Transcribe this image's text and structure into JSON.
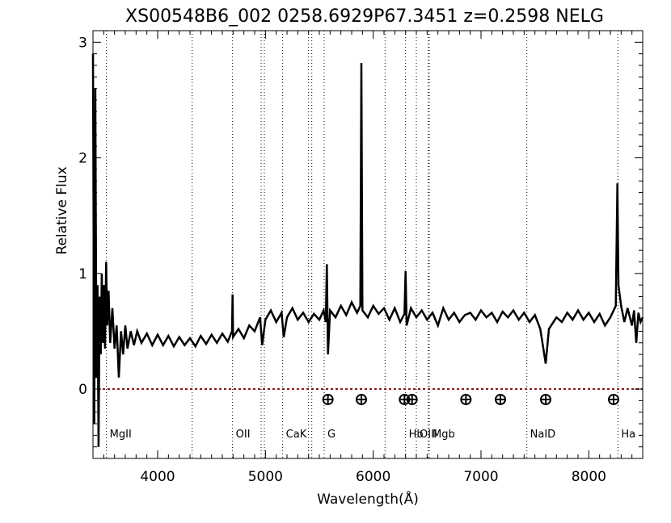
{
  "chart_data": {
    "type": "line",
    "title": "XS00548B6_002  0258.6929P67.3451  z=0.2598   NELG",
    "xlabel": "Wavelength(Å)",
    "ylabel": "Relative Flux",
    "xlim": [
      3400,
      8500
    ],
    "ylim": [
      -0.6,
      3.1
    ],
    "xticks": [
      4000,
      5000,
      6000,
      7000,
      8000
    ],
    "yticks": [
      0,
      1,
      2,
      3
    ],
    "grid": false,
    "zero_line": {
      "y": 0,
      "style": "dotted",
      "color": "#8b1a1a"
    },
    "spectral_lines": [
      {
        "label": "MgII",
        "x": 3525
      },
      {
        "label": "",
        "x": 4320
      },
      {
        "label": "OII",
        "x": 4695
      },
      {
        "label": "",
        "x": 4960
      },
      {
        "label": "",
        "x": 4990
      },
      {
        "label": "CaK",
        "x": 5160
      },
      {
        "label": "",
        "x": 5400
      },
      {
        "label": "",
        "x": 5430
      },
      {
        "label": "G",
        "x": 5545
      },
      {
        "label": "",
        "x": 6110
      },
      {
        "label": "Hb",
        "x": 6300
      },
      {
        "label": "OIII",
        "x": 6400
      },
      {
        "label": "",
        "x": 6510
      },
      {
        "label": "Mgb",
        "x": 6520
      },
      {
        "label": "NaID",
        "x": 7425
      },
      {
        "label": "Ha",
        "x": 8270
      }
    ],
    "telluric_markers": [
      5580,
      5890,
      6290,
      6360,
      6860,
      7180,
      7600,
      8230
    ],
    "telluric_marker_y": -0.09,
    "series": [
      {
        "values": [
          [
            3400,
            2.9
          ],
          [
            3412,
            -0.3
          ],
          [
            3422,
            2.6
          ],
          [
            3432,
            0.1
          ],
          [
            3442,
            0.9
          ],
          [
            3452,
            -0.5
          ],
          [
            3462,
            0.8
          ],
          [
            3472,
            0.3
          ],
          [
            3482,
            1.0
          ],
          [
            3492,
            0.4
          ],
          [
            3502,
            0.9
          ],
          [
            3512,
            0.35
          ],
          [
            3522,
            1.1
          ],
          [
            3532,
            0.55
          ],
          [
            3545,
            0.85
          ],
          [
            3560,
            0.4
          ],
          [
            3580,
            0.7
          ],
          [
            3600,
            0.35
          ],
          [
            3620,
            0.55
          ],
          [
            3640,
            0.1
          ],
          [
            3660,
            0.5
          ],
          [
            3680,
            0.3
          ],
          [
            3700,
            0.55
          ],
          [
            3720,
            0.35
          ],
          [
            3750,
            0.5
          ],
          [
            3780,
            0.38
          ],
          [
            3810,
            0.5
          ],
          [
            3850,
            0.4
          ],
          [
            3900,
            0.48
          ],
          [
            3950,
            0.38
          ],
          [
            4000,
            0.47
          ],
          [
            4050,
            0.38
          ],
          [
            4100,
            0.46
          ],
          [
            4150,
            0.37
          ],
          [
            4200,
            0.45
          ],
          [
            4250,
            0.38
          ],
          [
            4300,
            0.44
          ],
          [
            4350,
            0.37
          ],
          [
            4400,
            0.46
          ],
          [
            4450,
            0.39
          ],
          [
            4500,
            0.47
          ],
          [
            4550,
            0.4
          ],
          [
            4600,
            0.48
          ],
          [
            4650,
            0.41
          ],
          [
            4690,
            0.5
          ],
          [
            4695,
            0.82
          ],
          [
            4700,
            0.45
          ],
          [
            4750,
            0.52
          ],
          [
            4800,
            0.44
          ],
          [
            4850,
            0.55
          ],
          [
            4900,
            0.5
          ],
          [
            4950,
            0.62
          ],
          [
            4970,
            0.38
          ],
          [
            5000,
            0.6
          ],
          [
            5050,
            0.68
          ],
          [
            5100,
            0.58
          ],
          [
            5150,
            0.66
          ],
          [
            5170,
            0.45
          ],
          [
            5200,
            0.62
          ],
          [
            5250,
            0.7
          ],
          [
            5300,
            0.6
          ],
          [
            5350,
            0.66
          ],
          [
            5400,
            0.58
          ],
          [
            5450,
            0.65
          ],
          [
            5500,
            0.6
          ],
          [
            5540,
            0.68
          ],
          [
            5560,
            0.58
          ],
          [
            5570,
            1.08
          ],
          [
            5580,
            0.3
          ],
          [
            5600,
            0.68
          ],
          [
            5650,
            0.62
          ],
          [
            5700,
            0.72
          ],
          [
            5750,
            0.64
          ],
          [
            5800,
            0.75
          ],
          [
            5850,
            0.66
          ],
          [
            5880,
            0.72
          ],
          [
            5890,
            2.82
          ],
          [
            5900,
            0.68
          ],
          [
            5950,
            0.62
          ],
          [
            6000,
            0.72
          ],
          [
            6050,
            0.65
          ],
          [
            6100,
            0.7
          ],
          [
            6150,
            0.6
          ],
          [
            6200,
            0.7
          ],
          [
            6250,
            0.58
          ],
          [
            6290,
            0.65
          ],
          [
            6300,
            1.02
          ],
          [
            6310,
            0.55
          ],
          [
            6350,
            0.7
          ],
          [
            6400,
            0.62
          ],
          [
            6450,
            0.68
          ],
          [
            6500,
            0.6
          ],
          [
            6550,
            0.66
          ],
          [
            6600,
            0.55
          ],
          [
            6650,
            0.7
          ],
          [
            6700,
            0.6
          ],
          [
            6750,
            0.66
          ],
          [
            6800,
            0.58
          ],
          [
            6850,
            0.64
          ],
          [
            6900,
            0.66
          ],
          [
            6950,
            0.6
          ],
          [
            7000,
            0.68
          ],
          [
            7050,
            0.62
          ],
          [
            7100,
            0.66
          ],
          [
            7150,
            0.58
          ],
          [
            7200,
            0.67
          ],
          [
            7250,
            0.62
          ],
          [
            7300,
            0.68
          ],
          [
            7350,
            0.6
          ],
          [
            7400,
            0.66
          ],
          [
            7450,
            0.58
          ],
          [
            7500,
            0.64
          ],
          [
            7550,
            0.52
          ],
          [
            7600,
            0.22
          ],
          [
            7630,
            0.52
          ],
          [
            7700,
            0.62
          ],
          [
            7750,
            0.58
          ],
          [
            7800,
            0.66
          ],
          [
            7850,
            0.6
          ],
          [
            7900,
            0.68
          ],
          [
            7950,
            0.6
          ],
          [
            8000,
            0.66
          ],
          [
            8050,
            0.58
          ],
          [
            8100,
            0.65
          ],
          [
            8150,
            0.55
          ],
          [
            8200,
            0.62
          ],
          [
            8250,
            0.72
          ],
          [
            8265,
            1.78
          ],
          [
            8275,
            0.9
          ],
          [
            8300,
            0.72
          ],
          [
            8330,
            0.58
          ],
          [
            8360,
            0.7
          ],
          [
            8400,
            0.55
          ],
          [
            8420,
            0.68
          ],
          [
            8440,
            0.4
          ],
          [
            8460,
            0.66
          ],
          [
            8480,
            0.58
          ],
          [
            8500,
            0.62
          ]
        ]
      }
    ]
  }
}
